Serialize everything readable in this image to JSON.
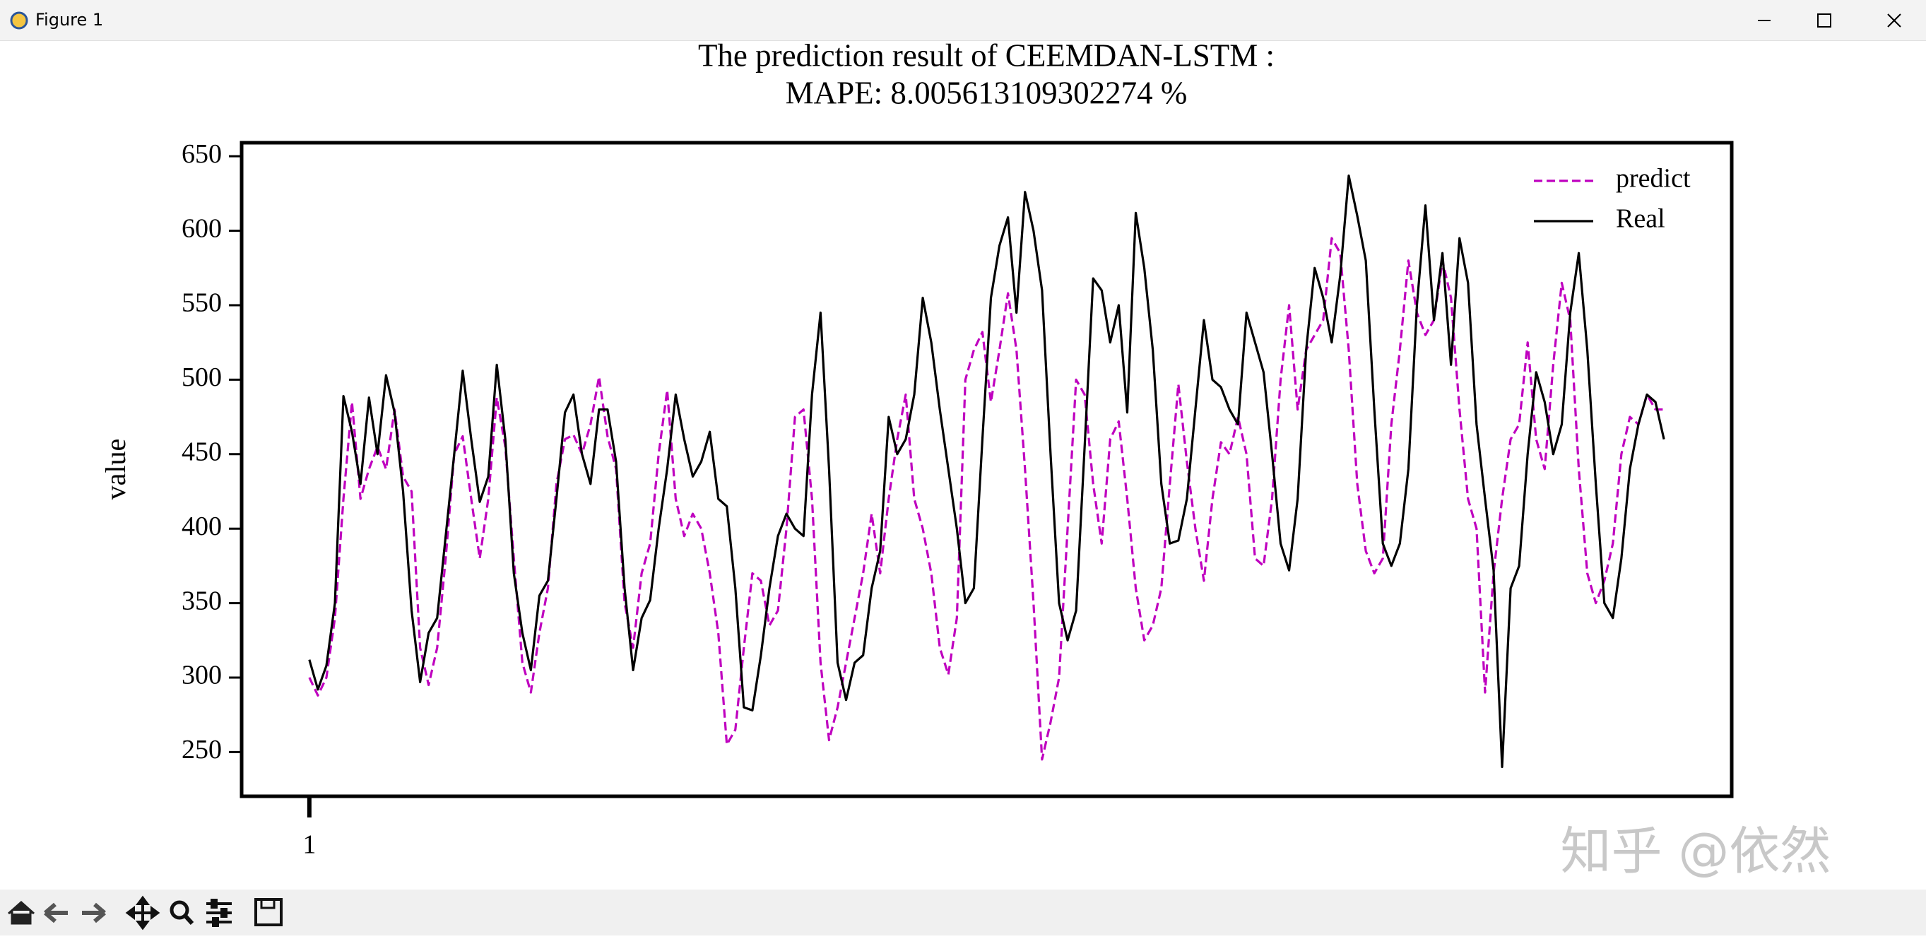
{
  "window": {
    "title": "Figure 1"
  },
  "watermark": "知乎 @依然",
  "chart_data": {
    "type": "line",
    "title": "The prediction result of CEEMDAN-LSTM :",
    "subtitle": "MAPE: 8.005613109302274 %",
    "y_label": "value",
    "x": [
      1,
      2,
      3,
      4,
      5,
      6,
      7,
      8,
      9,
      10,
      11,
      12,
      13,
      14,
      15,
      16,
      17,
      18,
      19,
      20,
      21,
      22,
      23,
      24,
      25,
      26,
      27,
      28,
      29,
      30,
      31,
      32,
      33,
      34,
      35,
      36,
      37,
      38,
      39,
      40,
      41,
      42,
      43,
      44,
      45,
      46,
      47,
      48,
      49,
      50,
      51,
      52,
      53,
      54,
      55,
      56,
      57,
      58,
      59,
      60,
      61,
      62,
      63,
      64,
      65,
      66,
      67,
      68,
      69,
      70,
      71,
      72,
      73,
      74,
      75,
      76,
      77,
      78,
      79,
      80,
      81,
      82,
      83,
      84,
      85,
      86,
      87,
      88,
      89,
      90,
      91,
      92,
      93,
      94,
      95,
      96,
      97,
      98,
      99,
      100,
      101,
      102,
      103,
      104,
      105,
      106,
      107,
      108,
      109,
      110,
      111,
      112,
      113,
      114,
      115,
      116,
      117,
      118,
      119,
      120,
      121,
      122,
      123,
      124,
      125,
      126,
      127,
      128,
      129,
      130,
      131,
      132,
      133,
      134,
      135,
      136,
      137,
      138,
      139,
      140,
      141,
      142,
      143,
      144,
      145,
      146,
      147,
      148,
      149,
      150,
      151,
      152,
      153,
      154,
      155,
      156,
      157,
      158,
      159,
      160
    ],
    "series": [
      {
        "name": "predict",
        "color": "#bf00bf",
        "linestyle": "dashed",
        "values": [
          300,
          288,
          300,
          340,
          420,
          485,
          420,
          440,
          455,
          440,
          480,
          435,
          425,
          320,
          295,
          320,
          380,
          450,
          462,
          420,
          380,
          420,
          488,
          455,
          380,
          310,
          290,
          330,
          360,
          430,
          460,
          463,
          450,
          470,
          502,
          462,
          440,
          350,
          320,
          370,
          390,
          450,
          493,
          420,
          395,
          410,
          400,
          370,
          330,
          255,
          265,
          320,
          370,
          365,
          335,
          345,
          400,
          475,
          480,
          420,
          310,
          258,
          280,
          310,
          340,
          370,
          410,
          370,
          420,
          460,
          490,
          420,
          400,
          370,
          320,
          302,
          340,
          500,
          520,
          532,
          485,
          520,
          558,
          520,
          440,
          350,
          245,
          270,
          300,
          400,
          500,
          490,
          430,
          390,
          460,
          472,
          420,
          360,
          325,
          335,
          360,
          430,
          497,
          445,
          400,
          365,
          420,
          458,
          450,
          475,
          450,
          380,
          375,
          420,
          500,
          550,
          480,
          520,
          530,
          540,
          595,
          585,
          520,
          430,
          385,
          370,
          380,
          470,
          520,
          580,
          545,
          530,
          540,
          580,
          555,
          480,
          420,
          400,
          290,
          370,
          420,
          460,
          470,
          525,
          460,
          440,
          510,
          565,
          540,
          440,
          370,
          350,
          365,
          390,
          450,
          475,
          470,
          490,
          480,
          480
        ]
      },
      {
        "name": "Real",
        "color": "#000000",
        "linestyle": "solid",
        "values": [
          312,
          292,
          308,
          350,
          489,
          465,
          430,
          488,
          450,
          503,
          478,
          425,
          345,
          297,
          330,
          340,
          395,
          450,
          506,
          460,
          418,
          435,
          510,
          460,
          370,
          330,
          305,
          355,
          365,
          420,
          478,
          490,
          450,
          430,
          480,
          480,
          445,
          360,
          305,
          340,
          352,
          400,
          440,
          490,
          460,
          435,
          445,
          465,
          420,
          415,
          360,
          280,
          278,
          315,
          360,
          395,
          410,
          400,
          395,
          490,
          545,
          440,
          310,
          285,
          310,
          315,
          360,
          385,
          475,
          450,
          460,
          490,
          555,
          525,
          480,
          440,
          400,
          350,
          360,
          460,
          555,
          590,
          609,
          545,
          626,
          600,
          560,
          450,
          350,
          325,
          345,
          455,
          568,
          560,
          525,
          550,
          478,
          612,
          575,
          520,
          430,
          390,
          392,
          420,
          480,
          540,
          500,
          495,
          480,
          470,
          545,
          525,
          505,
          450,
          390,
          372,
          420,
          520,
          575,
          555,
          525,
          570,
          637,
          610,
          580,
          480,
          390,
          375,
          390,
          440,
          550,
          617,
          540,
          585,
          510,
          595,
          565,
          470,
          420,
          372,
          240,
          360,
          375,
          450,
          505,
          485,
          450,
          470,
          545,
          585,
          520,
          430,
          350,
          340,
          380,
          440,
          470,
          490,
          485,
          460
        ]
      }
    ],
    "xlim": [
      -6.95,
      167.95
    ],
    "xticks": [
      1
    ],
    "ylim": [
      220.3,
      659.1
    ],
    "yticks": [
      250,
      300,
      350,
      400,
      450,
      500,
      550,
      600,
      650
    ],
    "grid": false,
    "legend": "upper right"
  }
}
